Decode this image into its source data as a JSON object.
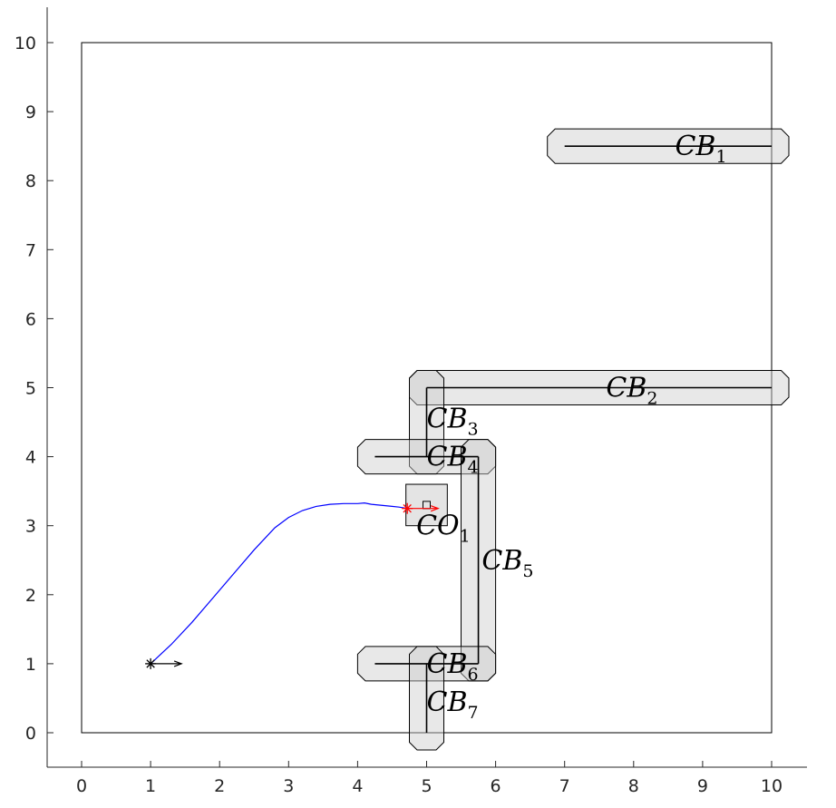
{
  "chart_data": {
    "type": "scatter",
    "title": "",
    "xlabel": "",
    "ylabel": "",
    "xlim": [
      -0.5,
      10.5
    ],
    "ylim": [
      -0.5,
      10.5
    ],
    "xticks": [
      "0",
      "1",
      "2",
      "3",
      "4",
      "5",
      "6",
      "7",
      "8",
      "9",
      "10"
    ],
    "yticks": [
      "0",
      "1",
      "2",
      "3",
      "4",
      "5",
      "6",
      "7",
      "8",
      "9",
      "10"
    ],
    "grid": false,
    "boundary": {
      "x": [
        0,
        10
      ],
      "y": [
        0,
        10
      ]
    },
    "segments": [
      {
        "label": "CB",
        "index": "1",
        "x": [
          7,
          10
        ],
        "y": [
          8.5,
          8.5
        ],
        "label_at": [
          8.6,
          8.5
        ]
      },
      {
        "label": "CB",
        "index": "2",
        "x": [
          5,
          10
        ],
        "y": [
          5,
          5
        ],
        "label_at": [
          7.6,
          5.0
        ]
      },
      {
        "label": "CB",
        "index": "3",
        "x": [
          5,
          5
        ],
        "y": [
          5,
          4
        ],
        "label_at": [
          5.0,
          4.55
        ]
      },
      {
        "label": "CB",
        "index": "4",
        "x": [
          4.25,
          5.75
        ],
        "y": [
          4,
          4
        ],
        "label_at": [
          5.0,
          4.0
        ]
      },
      {
        "label": "CB",
        "index": "5",
        "x": [
          5.75,
          5.75
        ],
        "y": [
          4,
          1
        ],
        "label_at": [
          5.8,
          2.5
        ]
      },
      {
        "label": "CB",
        "index": "6",
        "x": [
          4.25,
          5.75
        ],
        "y": [
          1,
          1
        ],
        "label_at": [
          5.0,
          1.0
        ]
      },
      {
        "label": "CB",
        "index": "7",
        "x": [
          5,
          5
        ],
        "y": [
          1,
          0
        ],
        "label_at": [
          5.0,
          0.45
        ]
      }
    ],
    "corridor_halfwidth": 0.25,
    "obstacle": {
      "label": "CO",
      "index": "1",
      "x": [
        4.7,
        5.3
      ],
      "y": [
        3.0,
        3.6
      ],
      "center": [
        5.0,
        3.3
      ],
      "label_at": [
        4.85,
        3.0
      ]
    },
    "trajectory": {
      "x": [
        1.0,
        1.3,
        1.6,
        1.9,
        2.2,
        2.5,
        2.8,
        3.0,
        3.2,
        3.4,
        3.6,
        3.8,
        4.0,
        4.1,
        4.2,
        4.3,
        4.4,
        4.5,
        4.6,
        4.72
      ],
      "y": [
        1.0,
        1.28,
        1.6,
        1.95,
        2.3,
        2.65,
        2.97,
        3.12,
        3.22,
        3.28,
        3.31,
        3.32,
        3.32,
        3.33,
        3.31,
        3.3,
        3.29,
        3.28,
        3.27,
        3.25
      ]
    },
    "start": {
      "x": 1.0,
      "y": 1.0,
      "heading_deg": 0
    },
    "end": {
      "x": 4.72,
      "y": 3.25,
      "heading_deg": 0
    }
  }
}
